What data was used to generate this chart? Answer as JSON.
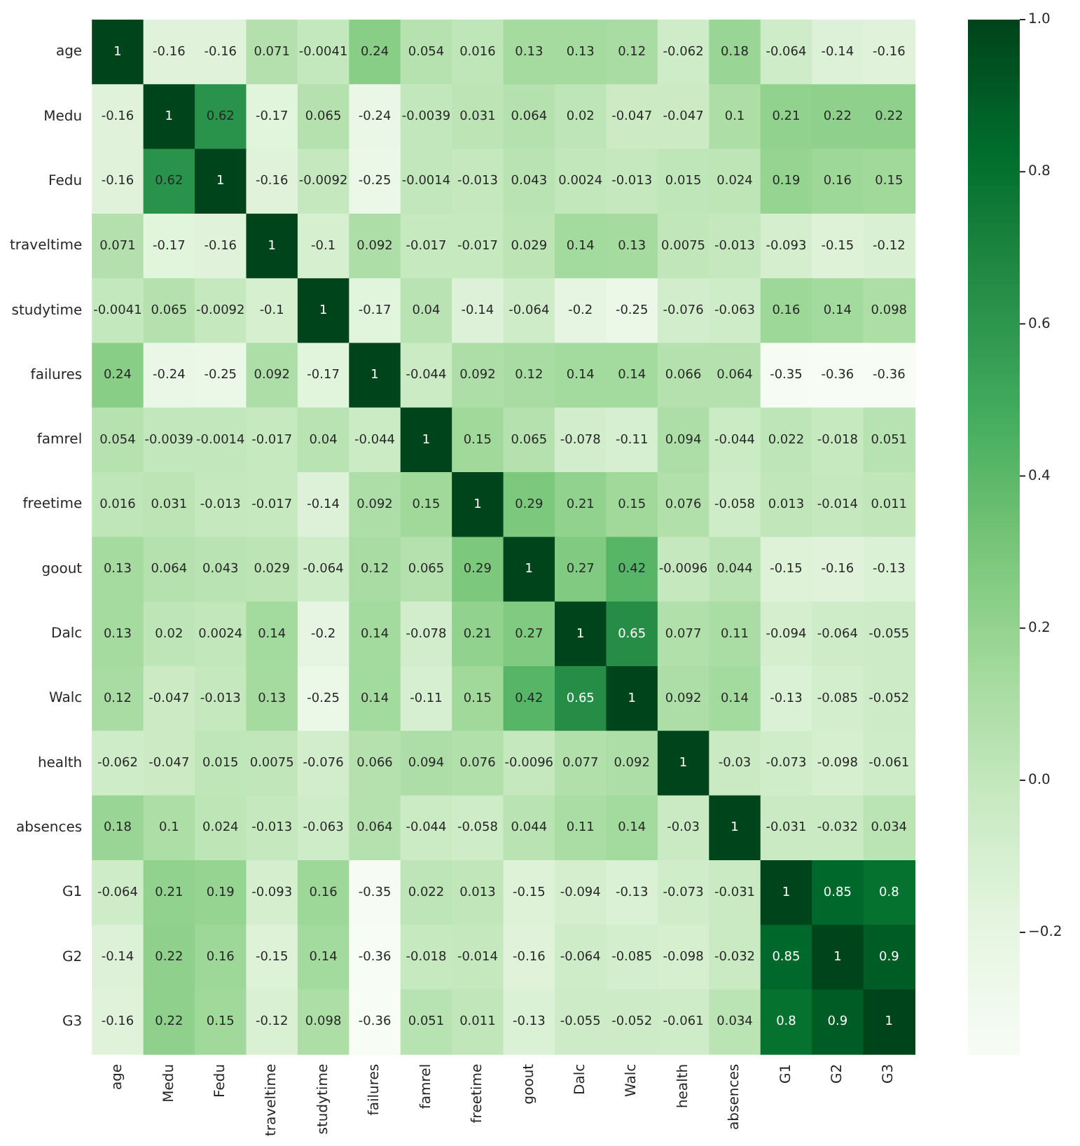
{
  "chart_data": {
    "type": "heatmap",
    "categories": [
      "age",
      "Medu",
      "Fedu",
      "traveltime",
      "studytime",
      "failures",
      "famrel",
      "freetime",
      "goout",
      "Dalc",
      "Walc",
      "health",
      "absences",
      "G1",
      "G2",
      "G3"
    ],
    "y_categories": [
      "age",
      "Medu",
      "Fedu",
      "traveltime",
      "studytime",
      "failures",
      "famrel",
      "freetime",
      "goout",
      "Dalc",
      "Walc",
      "health",
      "absences",
      "G1",
      "G2",
      "G3"
    ],
    "cells": [
      [
        1,
        -0.16,
        -0.16,
        0.071,
        -0.0041,
        0.24,
        0.054,
        0.016,
        0.13,
        0.13,
        0.12,
        -0.062,
        0.18,
        -0.064,
        -0.14,
        -0.16
      ],
      [
        -0.16,
        1,
        0.62,
        -0.17,
        0.065,
        -0.24,
        -0.0039,
        0.031,
        0.064,
        0.02,
        -0.047,
        -0.047,
        0.1,
        0.21,
        0.22,
        0.22
      ],
      [
        -0.16,
        0.62,
        1,
        -0.16,
        -0.0092,
        -0.25,
        -0.0014,
        -0.013,
        0.043,
        0.0024,
        -0.013,
        0.015,
        0.024,
        0.19,
        0.16,
        0.15
      ],
      [
        0.071,
        -0.17,
        -0.16,
        1,
        -0.1,
        0.092,
        -0.017,
        -0.017,
        0.029,
        0.14,
        0.13,
        0.0075,
        -0.013,
        -0.093,
        -0.15,
        -0.12
      ],
      [
        -0.0041,
        0.065,
        -0.0092,
        -0.1,
        1,
        -0.17,
        0.04,
        -0.14,
        -0.064,
        -0.2,
        -0.25,
        -0.076,
        -0.063,
        0.16,
        0.14,
        0.098
      ],
      [
        0.24,
        -0.24,
        -0.25,
        0.092,
        -0.17,
        1,
        -0.044,
        0.092,
        0.12,
        0.14,
        0.14,
        0.066,
        0.064,
        -0.35,
        -0.36,
        -0.36
      ],
      [
        0.054,
        -0.0039,
        -0.0014,
        -0.017,
        0.04,
        -0.044,
        1,
        0.15,
        0.065,
        -0.078,
        -0.11,
        0.094,
        -0.044,
        0.022,
        -0.018,
        0.051
      ],
      [
        0.016,
        0.031,
        -0.013,
        -0.017,
        -0.14,
        0.092,
        0.15,
        1,
        0.29,
        0.21,
        0.15,
        0.076,
        -0.058,
        0.013,
        -0.014,
        0.011
      ],
      [
        0.13,
        0.064,
        0.043,
        0.029,
        -0.064,
        0.12,
        0.065,
        0.29,
        1,
        0.27,
        0.42,
        -0.0096,
        0.044,
        -0.15,
        -0.16,
        -0.13
      ],
      [
        0.13,
        0.02,
        0.0024,
        0.14,
        -0.2,
        0.14,
        -0.078,
        0.21,
        0.27,
        1,
        0.65,
        0.077,
        0.11,
        -0.094,
        -0.064,
        -0.055
      ],
      [
        0.12,
        -0.047,
        -0.013,
        0.13,
        -0.25,
        0.14,
        -0.11,
        0.15,
        0.42,
        0.65,
        1,
        0.092,
        0.14,
        -0.13,
        -0.085,
        -0.052
      ],
      [
        -0.062,
        -0.047,
        0.015,
        0.0075,
        -0.076,
        0.066,
        0.094,
        0.076,
        -0.0096,
        0.077,
        0.092,
        1,
        -0.03,
        -0.073,
        -0.098,
        -0.061
      ],
      [
        0.18,
        0.1,
        0.024,
        -0.013,
        -0.063,
        0.064,
        -0.044,
        -0.058,
        0.044,
        0.11,
        0.14,
        -0.03,
        1,
        -0.031,
        -0.032,
        0.034
      ],
      [
        -0.064,
        0.21,
        0.19,
        -0.093,
        0.16,
        -0.35,
        0.022,
        0.013,
        -0.15,
        -0.094,
        -0.13,
        -0.073,
        -0.031,
        1,
        0.85,
        0.8
      ],
      [
        -0.14,
        0.22,
        0.16,
        -0.15,
        0.14,
        -0.36,
        -0.018,
        -0.014,
        -0.16,
        -0.064,
        -0.085,
        -0.098,
        -0.032,
        0.85,
        1,
        0.9
      ],
      [
        -0.16,
        0.22,
        0.15,
        -0.12,
        0.098,
        -0.36,
        0.051,
        0.011,
        -0.13,
        -0.055,
        -0.052,
        -0.061,
        0.034,
        0.8,
        0.9,
        1
      ]
    ],
    "clim": [
      -0.36,
      1.0
    ],
    "cticks": [
      {
        "value": -0.2,
        "label": "−0.2"
      },
      {
        "value": 0,
        "label": "0.0"
      },
      {
        "value": 0.2,
        "label": "0.2"
      },
      {
        "value": 0.4,
        "label": "0.4"
      },
      {
        "value": 0.6,
        "label": "0.6"
      },
      {
        "value": 0.8,
        "label": "0.8"
      },
      {
        "value": 1,
        "label": "1.0"
      }
    ],
    "data_labels": true
  }
}
